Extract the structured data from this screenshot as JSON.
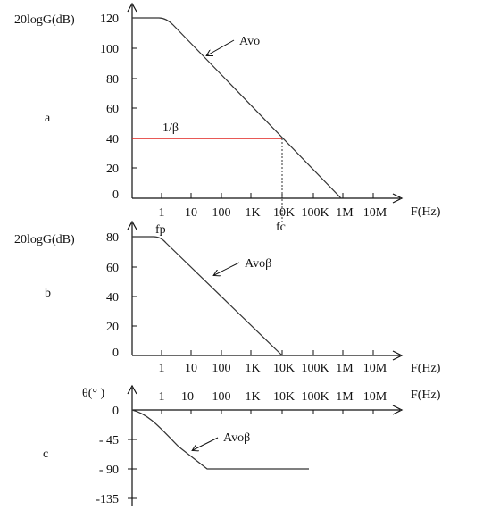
{
  "figure": {
    "colors": {
      "axis": "#111111",
      "curve": "#333333",
      "loop_gain_line": "#e0221e",
      "guide": "#333333"
    },
    "freq_ticks": [
      "1",
      "10",
      "100",
      "1K",
      "10K",
      "100K",
      "1M",
      "10M"
    ],
    "freq_title": "F(Hz)"
  },
  "panel_a": {
    "letter": "a",
    "y_title": "20logG(dB)",
    "y_ticks": [
      "120",
      "100",
      "80",
      "60",
      "40",
      "20",
      "0"
    ],
    "curve_label": "Avo",
    "beta_label": "1/β",
    "fc_label": "fc"
  },
  "panel_b": {
    "letter": "b",
    "y_title": "20logG(dB)",
    "y_ticks": [
      "80",
      "60",
      "40",
      "20",
      "0"
    ],
    "curve_label": "Avoβ",
    "fp_label": "fp"
  },
  "panel_c": {
    "letter": "c",
    "y_title": "θ(° )",
    "y_ticks": [
      "0",
      "- 45",
      "- 90",
      "-135"
    ],
    "curve_label": "Avoβ"
  }
}
